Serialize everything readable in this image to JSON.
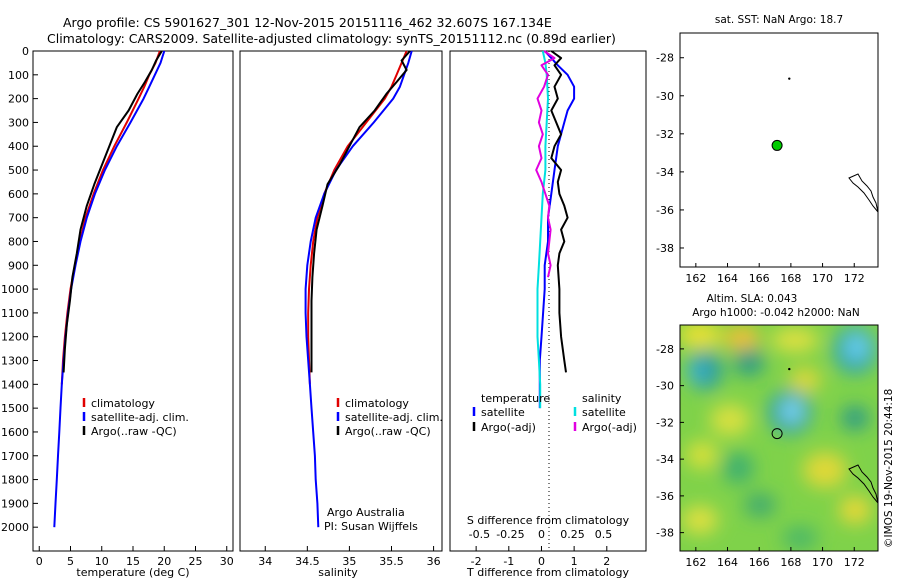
{
  "header": {
    "line1": "Argo profile: CS 5901627_301 12-Nov-2015 20151116_462 32.607S 167.134E",
    "line2": "Climatology: CARS2009. Satellite-adjusted climatology: synTS_20151112.nc (0.89d earlier)"
  },
  "footer": {
    "credit": "Argo Australia",
    "pi": "PI: Susan Wijffels",
    "imos": "©IMOS 19-Nov-2015 20:44:18"
  },
  "colors": {
    "climatology": "#e00000",
    "satellite": "#0000ff",
    "argo": "#000000",
    "cyan": "#00e0e0",
    "magenta": "#e000e0",
    "map_dot": "#00cc00"
  },
  "chart_data": [
    {
      "type": "line",
      "id": "temperature",
      "xlabel": "temperature (deg C)",
      "ylabel": "",
      "xlim": [
        -1,
        31
      ],
      "ylim": [
        0,
        2100
      ],
      "xticks": [
        "0",
        "5",
        "10",
        "15",
        "20",
        "25",
        "30"
      ],
      "xtick_values": [
        0,
        5,
        10,
        15,
        20,
        25,
        30
      ],
      "yticks": [
        "0",
        "100",
        "200",
        "300",
        "400",
        "500",
        "600",
        "700",
        "800",
        "900",
        "1000",
        "1100",
        "1200",
        "1300",
        "1400",
        "1500",
        "1600",
        "1700",
        "1800",
        "1900",
        "2000"
      ],
      "legend": [
        "climatology",
        "satellite-adj. clim.",
        "Argo(..raw -QC)"
      ],
      "series": [
        {
          "name": "climatology",
          "color": "#e00000",
          "depth": [
            0,
            50,
            100,
            150,
            200,
            300,
            400,
            500,
            600,
            700,
            800,
            900,
            1000,
            1100,
            1200,
            1300,
            1400
          ],
          "values": [
            19.3,
            18.6,
            17.6,
            16.8,
            15.9,
            14.0,
            12.0,
            10.2,
            8.7,
            7.4,
            6.5,
            5.7,
            5.0,
            4.5,
            4.1,
            3.8,
            3.6
          ]
        },
        {
          "name": "satellite-adj. clim.",
          "color": "#0000ff",
          "depth": [
            0,
            50,
            100,
            150,
            200,
            300,
            400,
            500,
            600,
            700,
            800,
            900,
            1000,
            1100,
            1200,
            1300,
            1400,
            1500,
            1600,
            1700,
            1800,
            1900,
            2000
          ],
          "values": [
            20.0,
            19.4,
            18.5,
            17.6,
            16.7,
            14.6,
            12.4,
            10.5,
            8.9,
            7.6,
            6.6,
            5.8,
            5.1,
            4.6,
            4.2,
            3.9,
            3.6,
            3.4,
            3.2,
            3.0,
            2.8,
            2.6,
            2.4
          ]
        },
        {
          "name": "Argo(..raw -QC)",
          "color": "#000000",
          "depth": [
            0,
            40,
            80,
            130,
            180,
            250,
            320,
            400,
            480,
            560,
            650,
            750,
            850,
            950,
            1050,
            1150,
            1250,
            1350
          ],
          "values": [
            19.6,
            18.7,
            18.0,
            16.9,
            15.7,
            14.3,
            12.4,
            11.2,
            10.0,
            8.8,
            7.6,
            6.6,
            6.0,
            5.3,
            4.9,
            4.4,
            4.1,
            3.9
          ]
        }
      ]
    },
    {
      "type": "line",
      "id": "salinity",
      "xlabel": "salinity",
      "ylabel": "",
      "xlim": [
        33.7,
        36.1
      ],
      "ylim": [
        0,
        2100
      ],
      "xticks": [
        "34",
        "34.5",
        "35",
        "35.5",
        "36"
      ],
      "xtick_values": [
        34,
        34.5,
        35,
        35.5,
        36
      ],
      "legend": [
        "climatology",
        "satellite-adj. clim.",
        "Argo(..raw -QC)"
      ],
      "series": [
        {
          "name": "climatology",
          "color": "#e00000",
          "depth": [
            0,
            50,
            100,
            150,
            200,
            300,
            400,
            500,
            600,
            700,
            800,
            900,
            1000,
            1100,
            1200,
            1300,
            1400
          ],
          "values": [
            35.68,
            35.62,
            35.56,
            35.5,
            35.42,
            35.2,
            34.98,
            34.82,
            34.7,
            34.62,
            34.57,
            34.54,
            34.52,
            34.51,
            34.51,
            34.52,
            34.53
          ]
        },
        {
          "name": "satellite-adj. clim.",
          "color": "#0000ff",
          "depth": [
            0,
            50,
            100,
            150,
            200,
            300,
            400,
            500,
            600,
            700,
            800,
            900,
            1000,
            1100,
            1200,
            1300,
            1400,
            1500,
            1600,
            1700,
            1800,
            1900,
            2000
          ],
          "values": [
            35.74,
            35.7,
            35.65,
            35.6,
            35.52,
            35.29,
            35.04,
            34.84,
            34.7,
            34.6,
            34.54,
            34.5,
            34.48,
            34.48,
            34.49,
            34.51,
            34.53,
            34.55,
            34.57,
            34.59,
            34.6,
            34.62,
            34.63
          ]
        },
        {
          "name": "Argo(..raw -QC)",
          "color": "#000000",
          "depth": [
            0,
            40,
            80,
            130,
            180,
            250,
            320,
            400,
            480,
            560,
            650,
            750,
            850,
            950,
            1050,
            1150,
            1250,
            1350
          ],
          "values": [
            35.72,
            35.62,
            35.68,
            35.56,
            35.44,
            35.3,
            35.12,
            35.0,
            34.88,
            34.74,
            34.68,
            34.61,
            34.58,
            34.56,
            34.55,
            34.55,
            34.55,
            34.55
          ]
        }
      ]
    },
    {
      "type": "line",
      "id": "difference",
      "xlabel": "T difference from climatology",
      "xlabel_top": "S difference from climatology",
      "xlim": [
        -2.8,
        3.2
      ],
      "ylim": [
        0,
        2100
      ],
      "xticks": [
        "-2",
        "-1",
        "0",
        "1",
        "2"
      ],
      "xtick_values": [
        -2,
        -1,
        0,
        1,
        2
      ],
      "sticks": [
        "-0.5",
        "-0.25",
        "0",
        "0.25",
        "0.5"
      ],
      "stick_values": [
        -0.5,
        -0.25,
        0,
        0.25,
        0.5
      ],
      "legend_temperature_title": "temperature",
      "legend_salinity_title": "salinity",
      "legend_labels": [
        "satellite",
        "Argo(-adj)",
        "satellite",
        "Argo(-adj)"
      ],
      "series": [
        {
          "name": "T satellite",
          "color": "#0000ff",
          "depth": [
            0,
            30,
            60,
            100,
            150,
            200,
            250,
            300,
            400,
            500,
            600,
            700,
            800,
            900,
            1000,
            1100,
            1200,
            1300,
            1400,
            1500
          ],
          "values": [
            0.1,
            0.3,
            0.5,
            0.8,
            1.0,
            1.0,
            0.8,
            0.7,
            0.5,
            0.4,
            0.3,
            0.2,
            0.2,
            0.1,
            0.1,
            0.05,
            0,
            -0.05,
            -0.05,
            -0.05
          ]
        },
        {
          "name": "T Argo(-adj)",
          "color": "#000000",
          "depth": [
            0,
            30,
            60,
            100,
            150,
            200,
            250,
            300,
            350,
            400,
            450,
            500,
            550,
            600,
            650,
            700,
            750,
            800,
            850,
            900,
            1000,
            1100,
            1200,
            1300,
            1350
          ],
          "values": [
            0.3,
            0.6,
            0.4,
            0.6,
            0.4,
            0.5,
            0.3,
            0.45,
            0.6,
            0.4,
            0.3,
            0.6,
            0.5,
            0.55,
            0.7,
            0.8,
            0.6,
            0.7,
            0.55,
            0.5,
            0.55,
            0.55,
            0.6,
            0.7,
            0.75
          ]
        },
        {
          "name": "S satellite",
          "color": "#00e0e0",
          "depth": [
            0,
            50,
            100,
            200,
            300,
            400,
            500,
            600,
            700,
            800,
            900,
            1000,
            1100,
            1200,
            1300,
            1400,
            1500
          ],
          "values": [
            0.01,
            0.03,
            0.04,
            0.05,
            0.04,
            0.03,
            0.03,
            0.01,
            0.0,
            -0.01,
            -0.02,
            -0.03,
            -0.03,
            -0.03,
            -0.02,
            -0.01,
            -0.01
          ]
        },
        {
          "name": "S Argo(-adj)",
          "color": "#e000e0",
          "depth": [
            0,
            30,
            60,
            100,
            150,
            200,
            250,
            300,
            350,
            400,
            450,
            500,
            550,
            600,
            650,
            700,
            750,
            800,
            850,
            900,
            950
          ],
          "values": [
            0.02,
            0.1,
            0.0,
            0.05,
            0.02,
            -0.03,
            0.0,
            -0.02,
            0.01,
            -0.02,
            0.0,
            -0.04,
            0.0,
            0.03,
            0.06,
            0.05,
            0.07,
            0.06,
            0.05,
            0.07,
            0.05
          ]
        }
      ]
    },
    {
      "type": "scatter",
      "id": "sst_map",
      "title": "sat. SST: NaN  Argo: 18.7",
      "xlim": [
        161,
        173.5
      ],
      "ylim": [
        -39,
        -26.7
      ],
      "xticks": [
        "162",
        "164",
        "166",
        "168",
        "170",
        "172"
      ],
      "xtick_values": [
        162,
        164,
        166,
        168,
        170,
        172
      ],
      "yticks": [
        "-28",
        "-30",
        "-32",
        "-34",
        "-36",
        "-38"
      ],
      "ytick_values": [
        -28,
        -30,
        -32,
        -34,
        -36,
        -38
      ],
      "points": [
        {
          "name": "argo-position",
          "x": 167.13,
          "y": -32.61
        },
        {
          "name": "small-marker",
          "x": 167.9,
          "y": -29.1
        }
      ]
    },
    {
      "type": "heatmap",
      "id": "sla_map",
      "title_line1": "Altim. SLA: 0.043",
      "title_line2": "Argo h1000: -0.042  h2000: NaN",
      "xlim": [
        161,
        173.5
      ],
      "ylim": [
        -39,
        -26.7
      ],
      "xticks": [
        "162",
        "164",
        "166",
        "168",
        "170",
        "172"
      ],
      "xtick_values": [
        162,
        164,
        166,
        168,
        170,
        172
      ],
      "yticks": [
        "-28",
        "-30",
        "-32",
        "-34",
        "-36",
        "-38"
      ],
      "ytick_values": [
        -28,
        -30,
        -32,
        -34,
        -36,
        -38
      ],
      "points": [
        {
          "name": "argo-position",
          "x": 167.13,
          "y": -32.61
        },
        {
          "name": "small-marker",
          "x": 167.9,
          "y": -29.1
        }
      ]
    }
  ]
}
